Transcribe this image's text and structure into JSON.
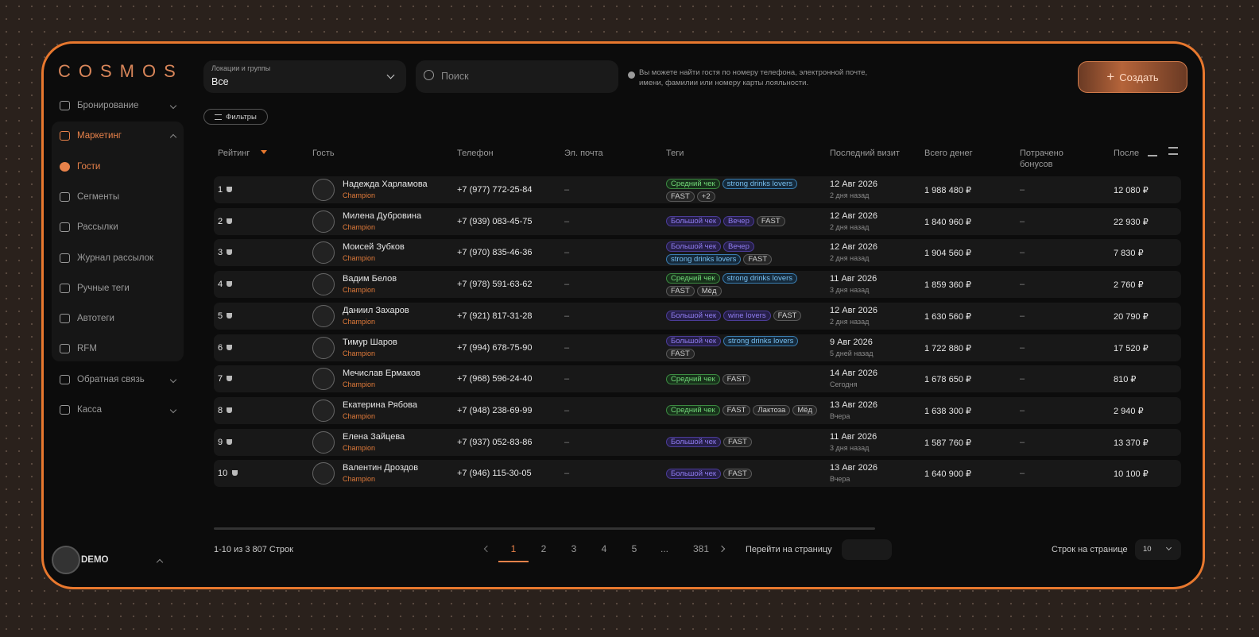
{
  "brand": "COSMOS",
  "sidebar": {
    "nav": [
      {
        "label": "Бронирование"
      },
      {
        "label": "Маркетинг",
        "items": [
          "Гости",
          "Сегменты",
          "Рассылки",
          "Журнал рассылок",
          "Ручные теги",
          "Автотеги",
          "RFM"
        ]
      },
      {
        "label": "Обратная связь"
      },
      {
        "label": "Касса"
      }
    ],
    "user": "DEMO"
  },
  "toolbar": {
    "location_label": "Локации и группы",
    "location_value": "Все",
    "search_placeholder": "Поиск",
    "hint": "Вы можете найти гостя по номеру телефона, электронной почте, имени, фамилии или номеру карты лояльности.",
    "create": "Создать",
    "filters": "Фильтры"
  },
  "table": {
    "columns": [
      "Рейтинг",
      "Гость",
      "Телефон",
      "Эл. почта",
      "Теги",
      "Последний визит",
      "Всего денег",
      "Потрачено бонусов",
      "После"
    ],
    "rows": [
      {
        "rank": "1",
        "name": "Надежда Харламова",
        "status": "Champion",
        "phone": "+7 (977) 772-25-84",
        "email": "–",
        "tags": [
          {
            "label": "Средний чек",
            "kind": "green"
          },
          {
            "label": "strong drinks lovers",
            "kind": "blue"
          },
          {
            "label": "FAST",
            "kind": "gray"
          },
          {
            "label": "+2",
            "kind": "gray"
          }
        ],
        "visit": "12 Авг 2026",
        "ago": "2 дня назад",
        "total": "1 988 480 ₽",
        "bonus": "–",
        "last": "12 080 ₽"
      },
      {
        "rank": "2",
        "name": "Милена Дубровина",
        "status": "Champion",
        "phone": "+7 (939) 083-45-75",
        "email": "–",
        "tags": [
          {
            "label": "Большой чек",
            "kind": "purple"
          },
          {
            "label": "Вечер",
            "kind": "purple"
          },
          {
            "label": "FAST",
            "kind": "gray"
          }
        ],
        "visit": "12 Авг 2026",
        "ago": "2 дня назад",
        "total": "1 840 960 ₽",
        "bonus": "–",
        "last": "22 930 ₽"
      },
      {
        "rank": "3",
        "name": "Моисей Зубков",
        "status": "Champion",
        "phone": "+7 (970) 835-46-36",
        "email": "–",
        "tags": [
          {
            "label": "Большой чек",
            "kind": "purple"
          },
          {
            "label": "Вечер",
            "kind": "purple"
          },
          {
            "label": "strong drinks lovers",
            "kind": "blue"
          },
          {
            "label": "FAST",
            "kind": "gray"
          }
        ],
        "visit": "12 Авг 2026",
        "ago": "2 дня назад",
        "total": "1 904 560 ₽",
        "bonus": "–",
        "last": "7 830 ₽"
      },
      {
        "rank": "4",
        "name": "Вадим Белов",
        "status": "Champion",
        "phone": "+7 (978) 591-63-62",
        "email": "–",
        "tags": [
          {
            "label": "Средний чек",
            "kind": "green"
          },
          {
            "label": "strong drinks lovers",
            "kind": "blue"
          },
          {
            "label": "FAST",
            "kind": "gray"
          },
          {
            "label": "Мёд",
            "kind": "gray"
          }
        ],
        "visit": "11 Авг 2026",
        "ago": "3 дня назад",
        "total": "1 859 360 ₽",
        "bonus": "–",
        "last": "2 760 ₽"
      },
      {
        "rank": "5",
        "name": "Даниил Захаров",
        "status": "Champion",
        "phone": "+7 (921) 817-31-28",
        "email": "–",
        "tags": [
          {
            "label": "Большой чек",
            "kind": "purple"
          },
          {
            "label": "wine lovers",
            "kind": "purple"
          },
          {
            "label": "FAST",
            "kind": "gray"
          }
        ],
        "visit": "12 Авг 2026",
        "ago": "2 дня назад",
        "total": "1 630 560 ₽",
        "bonus": "–",
        "last": "20 790 ₽"
      },
      {
        "rank": "6",
        "name": "Тимур Шаров",
        "status": "Champion",
        "phone": "+7 (994) 678-75-90",
        "email": "–",
        "tags": [
          {
            "label": "Большой чек",
            "kind": "purple"
          },
          {
            "label": "strong drinks lovers",
            "kind": "blue"
          },
          {
            "label": "FAST",
            "kind": "gray"
          }
        ],
        "visit": "9 Авг 2026",
        "ago": "5 дней назад",
        "total": "1 722 880 ₽",
        "bonus": "–",
        "last": "17 520 ₽"
      },
      {
        "rank": "7",
        "name": "Мечислав Ермаков",
        "status": "Champion",
        "phone": "+7 (968) 596-24-40",
        "email": "–",
        "tags": [
          {
            "label": "Средний чек",
            "kind": "green"
          },
          {
            "label": "FAST",
            "kind": "gray"
          }
        ],
        "visit": "14 Авг 2026",
        "ago": "Сегодня",
        "total": "1 678 650 ₽",
        "bonus": "–",
        "last": "810 ₽"
      },
      {
        "rank": "8",
        "name": "Екатерина Рябова",
        "status": "Champion",
        "phone": "+7 (948) 238-69-99",
        "email": "–",
        "tags": [
          {
            "label": "Средний чек",
            "kind": "green"
          },
          {
            "label": "FAST",
            "kind": "gray"
          },
          {
            "label": "Лактоза",
            "kind": "gray"
          },
          {
            "label": "Мёд",
            "kind": "gray"
          }
        ],
        "visit": "13 Авг 2026",
        "ago": "Вчера",
        "total": "1 638 300 ₽",
        "bonus": "–",
        "last": "2 940 ₽"
      },
      {
        "rank": "9",
        "name": "Елена Зайцева",
        "status": "Champion",
        "phone": "+7 (937) 052-83-86",
        "email": "–",
        "tags": [
          {
            "label": "Большой чек",
            "kind": "purple"
          },
          {
            "label": "FAST",
            "kind": "gray"
          }
        ],
        "visit": "11 Авг 2026",
        "ago": "3 дня назад",
        "total": "1 587 760 ₽",
        "bonus": "–",
        "last": "13 370 ₽"
      },
      {
        "rank": "10",
        "name": "Валентин Дроздов",
        "status": "Champion",
        "phone": "+7 (946) 115-30-05",
        "email": "–",
        "tags": [
          {
            "label": "Большой чек",
            "kind": "purple"
          },
          {
            "label": "FAST",
            "kind": "gray"
          }
        ],
        "visit": "13 Авг 2026",
        "ago": "Вчера",
        "total": "1 640 900 ₽",
        "bonus": "–",
        "last": "10 100 ₽"
      }
    ]
  },
  "pagination": {
    "summary": "1-10 из 3 807 Строк",
    "pages": [
      "1",
      "2",
      "3",
      "4",
      "5",
      "...",
      "381"
    ],
    "goto": "Перейти на страницу",
    "per_page_label": "Строк на странице",
    "per_page": "10"
  }
}
